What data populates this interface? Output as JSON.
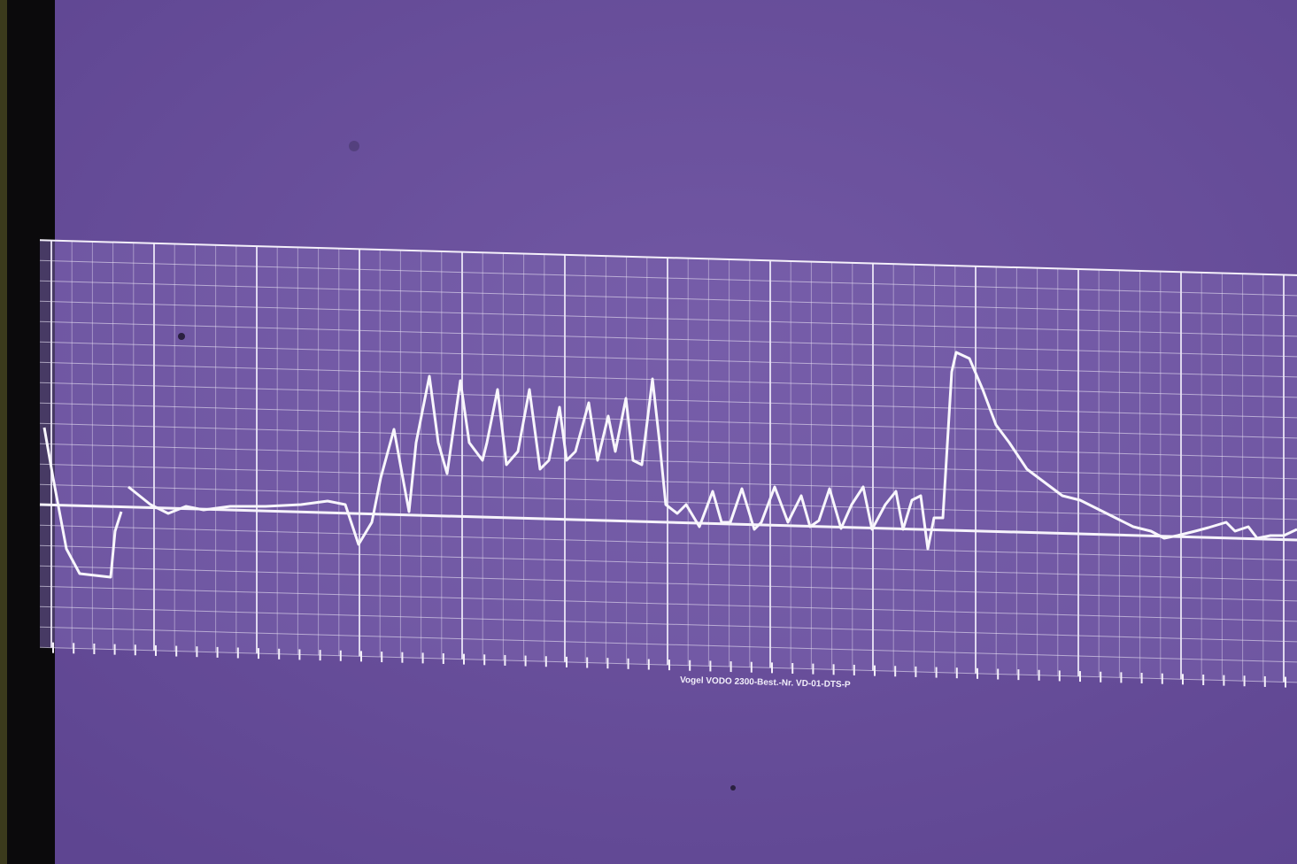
{
  "caption": "Vogel VODO 2300-Best.-Nr. VD-01-DTS-P"
}
